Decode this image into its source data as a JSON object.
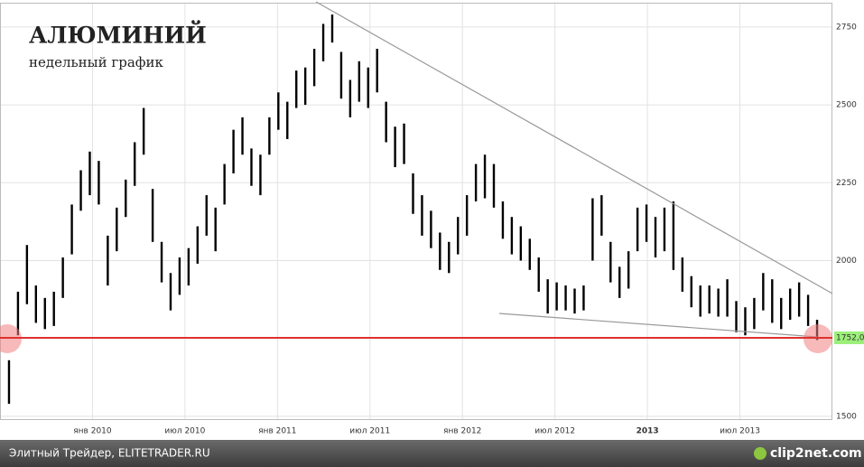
{
  "chart_data": {
    "type": "range-bar",
    "title": "АЛЮМИНИЙ",
    "subtitle": "недельный график",
    "series": [
      {
        "color": "#000000",
        "high": [
          1680,
          1900,
          2050,
          1920,
          1880,
          1900,
          2010,
          2180,
          2290,
          2350,
          2320,
          2080,
          2170,
          2260,
          2380,
          2490,
          2230,
          2060,
          1960,
          2010,
          2040,
          2110,
          2210,
          2170,
          2310,
          2420,
          2460,
          2360,
          2340,
          2460,
          2540,
          2510,
          2610,
          2620,
          2680,
          2760,
          2790,
          2670,
          2580,
          2640,
          2620,
          2680,
          2510,
          2430,
          2440,
          2280,
          2210,
          2160,
          2090,
          2060,
          2140,
          2210,
          2310,
          2340,
          2310,
          2190,
          2140,
          2110,
          2070,
          2010,
          1940,
          1930,
          1920,
          1910,
          1920,
          2200,
          2210,
          2060,
          1980,
          2030,
          2170,
          2180,
          2140,
          2170,
          2190,
          2010,
          1950,
          1920,
          1920,
          1910,
          1940,
          1870,
          1850,
          1880,
          1960,
          1940,
          1880,
          1910,
          1930,
          1890,
          1810
        ],
        "low": [
          1540,
          1760,
          1860,
          1800,
          1780,
          1790,
          1880,
          2020,
          2160,
          2210,
          2180,
          1920,
          2030,
          2140,
          2240,
          2340,
          2060,
          1930,
          1840,
          1890,
          1920,
          1990,
          2080,
          2030,
          2180,
          2280,
          2340,
          2240,
          2210,
          2340,
          2420,
          2390,
          2490,
          2500,
          2560,
          2640,
          2700,
          2520,
          2460,
          2510,
          2490,
          2540,
          2380,
          2300,
          2310,
          2150,
          2080,
          2040,
          1970,
          1960,
          2020,
          2080,
          2190,
          2200,
          2170,
          2070,
          2020,
          2000,
          1970,
          1900,
          1830,
          1840,
          1840,
          1830,
          1840,
          2000,
          2080,
          1930,
          1880,
          1910,
          2030,
          2060,
          2010,
          2030,
          1970,
          1900,
          1850,
          1820,
          1830,
          1820,
          1820,
          1770,
          1760,
          1780,
          1840,
          1800,
          1780,
          1810,
          1820,
          1790,
          1745
        ]
      }
    ],
    "level": {
      "value": 1752,
      "label": "1752,0",
      "color": "#e03030"
    },
    "ylim": [
      1488,
      2828
    ],
    "yticks": [
      1500,
      2000,
      2250,
      2500,
      2750
    ],
    "xlim": [
      "2009-07",
      "2014-01"
    ],
    "xticks": [
      {
        "value": "2010-01",
        "label": "янв 2010"
      },
      {
        "value": "2010-07",
        "label": "июл 2010"
      },
      {
        "value": "2011-01",
        "label": "янв 2011"
      },
      {
        "value": "2011-07",
        "label": "июл 2011"
      },
      {
        "value": "2012-01",
        "label": "янв 2012"
      },
      {
        "value": "2012-07",
        "label": "июл 2012"
      },
      {
        "value": "2013-01",
        "label": "2013"
      },
      {
        "value": "2013-07",
        "label": "июл 2013"
      }
    ],
    "grid": true
  },
  "footer": {
    "source": "Элитный Трейдер, ELITETRADER.RU",
    "logo": "clip2net.com"
  }
}
